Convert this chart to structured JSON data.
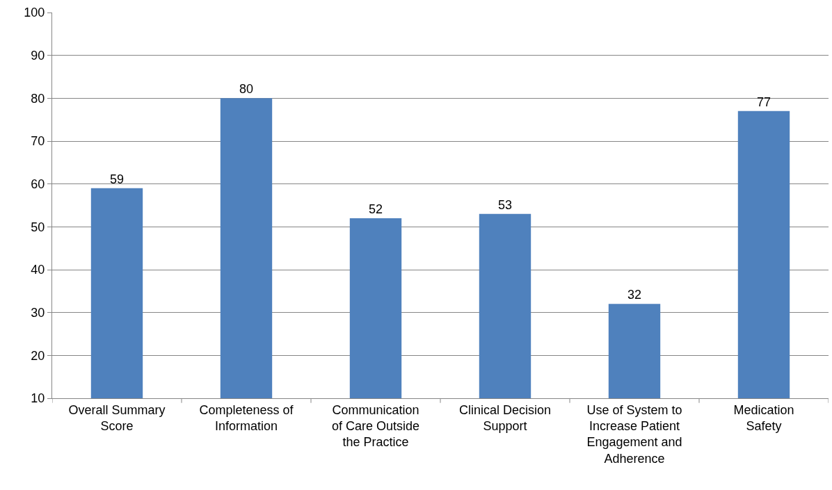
{
  "chart_data": {
    "type": "bar",
    "categories": [
      "Overall Summary\nScore",
      "Completeness of\nInformation",
      "Communication\nof Care Outside\nthe Practice",
      "Clinical Decision\nSupport",
      "Use of System to\nIncrease Patient\nEngagement and\nAdherence",
      "Medication\nSafety"
    ],
    "values": [
      59,
      80,
      52,
      53,
      32,
      77
    ],
    "color": "#4f81bd",
    "ylim": [
      10,
      100
    ],
    "yticks": [
      10,
      20,
      30,
      40,
      50,
      60,
      70,
      80,
      90,
      100
    ],
    "grid": "y",
    "data_labels": true
  }
}
